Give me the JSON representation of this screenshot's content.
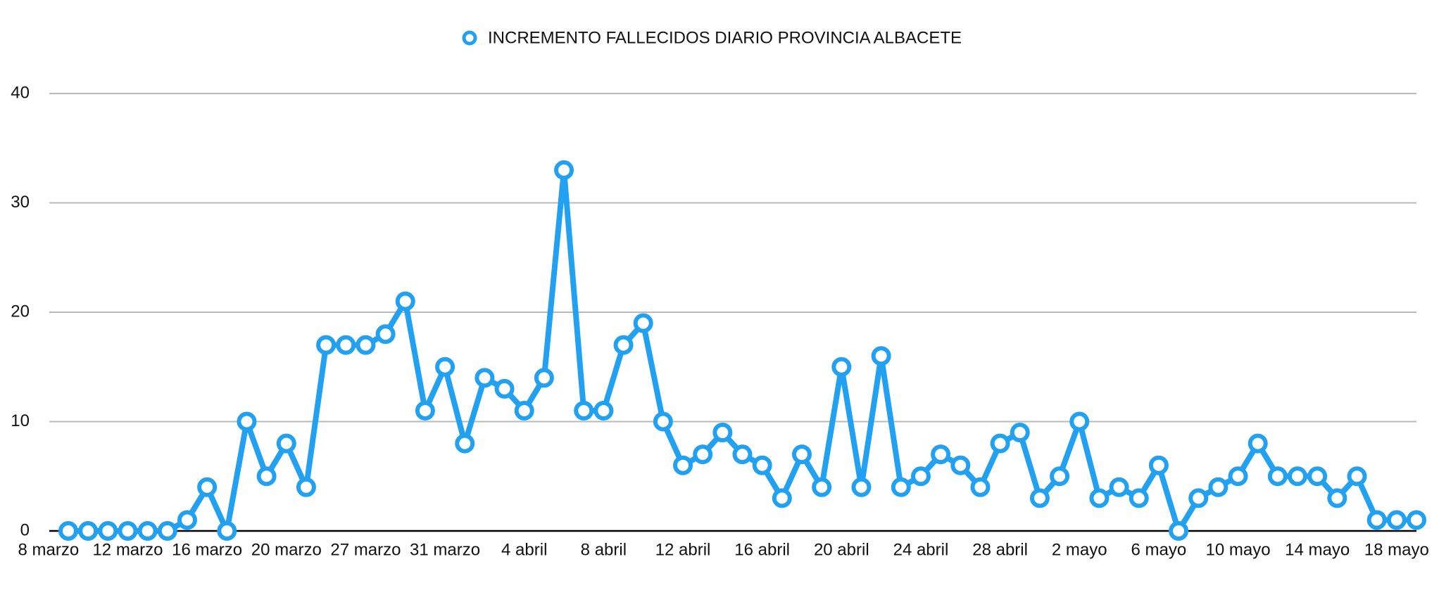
{
  "chart_data": {
    "type": "line",
    "categories": [
      "8 marzo",
      null,
      null,
      null,
      "12 marzo",
      null,
      null,
      null,
      "16 marzo",
      null,
      null,
      null,
      "20 marzo",
      null,
      null,
      null,
      "27 marzo",
      null,
      null,
      null,
      "31 marzo",
      null,
      null,
      null,
      "4 abril",
      null,
      null,
      null,
      "8 abril",
      null,
      null,
      null,
      "12 abril",
      null,
      null,
      null,
      "16 abril",
      null,
      null,
      null,
      "20 abril",
      null,
      null,
      null,
      "24 abril",
      null,
      null,
      null,
      "28 abril",
      null,
      null,
      null,
      "2 mayo",
      null,
      null,
      null,
      "6 mayo",
      null,
      null,
      null,
      "10 mayo",
      null,
      null,
      null,
      "14 mayo",
      null,
      null,
      null,
      "18 mayo"
    ],
    "series": [
      {
        "name": "INCREMENTO FALLECIDOS DIARIO PROVINCIA ALBACETE",
        "color": "#22a1f2",
        "values": [
          0,
          0,
          0,
          0,
          0,
          0,
          1,
          4,
          0,
          10,
          5,
          8,
          4,
          17,
          17,
          17,
          18,
          21,
          11,
          15,
          8,
          14,
          13,
          11,
          14,
          33,
          11,
          11,
          17,
          19,
          10,
          6,
          7,
          9,
          7,
          6,
          3,
          7,
          4,
          15,
          4,
          16,
          4,
          5,
          7,
          6,
          4,
          8,
          9,
          3,
          5,
          10,
          3,
          4,
          3,
          6,
          0,
          3,
          4,
          5,
          8,
          5,
          5,
          5,
          3,
          5,
          1,
          1,
          1
        ]
      }
    ],
    "ylim": [
      0,
      40
    ],
    "yticks": [
      0,
      10,
      20,
      30,
      40
    ],
    "grid": true,
    "legend": "top"
  }
}
